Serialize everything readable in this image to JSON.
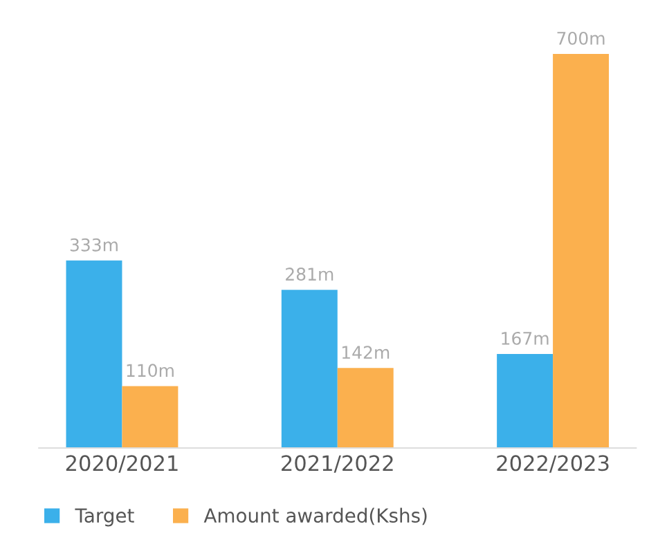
{
  "chart_data": {
    "type": "bar",
    "categories": [
      "2020/2021",
      "2021/2022",
      "2022/2023"
    ],
    "series": [
      {
        "name": "Target",
        "color": "#3bb0ea",
        "values": [
          333,
          281,
          167
        ],
        "value_labels": [
          "333m",
          "281m",
          "167m"
        ]
      },
      {
        "name": "Amount awarded(Kshs)",
        "color": "#fbb04e",
        "values": [
          110,
          142,
          700
        ],
        "value_labels": [
          "110m",
          "142m",
          "700m"
        ]
      }
    ],
    "legend": "bottom"
  }
}
